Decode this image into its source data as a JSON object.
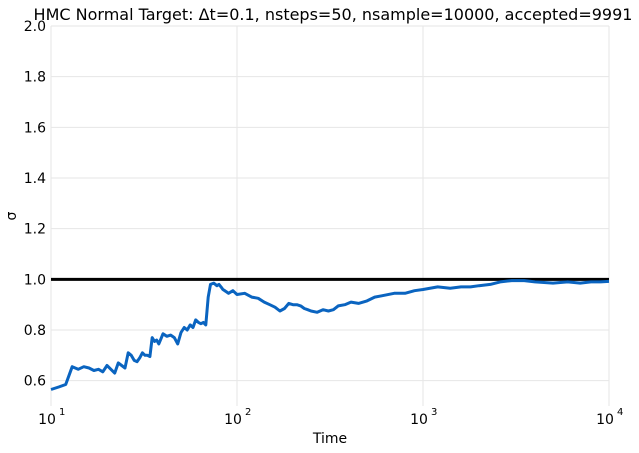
{
  "chart_data": {
    "type": "line",
    "title": "HMC Normal Target: Δt=0.1, nsteps=50, nsample=10000, accepted=9991",
    "xlabel": "Time",
    "ylabel": "σ",
    "xscale": "log",
    "xlim": [
      10,
      10000
    ],
    "ylim": [
      0.5,
      2.0
    ],
    "grid": true,
    "x_ticks": [
      {
        "base": "10",
        "exp": "1",
        "value": 10
      },
      {
        "base": "10",
        "exp": "2",
        "value": 100
      },
      {
        "base": "10",
        "exp": "3",
        "value": 1000
      },
      {
        "base": "10",
        "exp": "4",
        "value": 10000
      }
    ],
    "y_ticks": [
      "0.6",
      "0.8",
      "1.0",
      "1.2",
      "1.4",
      "1.6",
      "1.8",
      "2.0"
    ],
    "reference_line": {
      "y": 1.0,
      "color": "#000000"
    },
    "series": [
      {
        "color": "#0a64c0",
        "x": [
          10,
          11,
          12,
          13,
          14,
          15,
          16,
          17,
          18,
          19,
          20,
          21,
          22,
          23,
          24,
          25,
          26,
          27,
          28,
          29,
          30,
          31,
          32,
          33,
          34,
          35,
          36,
          37,
          38,
          39,
          40,
          42,
          44,
          46,
          48,
          50,
          52,
          54,
          56,
          58,
          60,
          62,
          64,
          66,
          68,
          70,
          72,
          75,
          78,
          80,
          82,
          84,
          86,
          88,
          90,
          95,
          100,
          110,
          120,
          130,
          140,
          150,
          160,
          170,
          180,
          190,
          200,
          210,
          220,
          230,
          240,
          250,
          270,
          290,
          310,
          330,
          350,
          380,
          410,
          450,
          500,
          550,
          600,
          700,
          800,
          900,
          1000,
          1200,
          1400,
          1600,
          1800,
          2000,
          2300,
          2600,
          3000,
          3500,
          4000,
          5000,
          6000,
          7000,
          8000,
          9000,
          10000
        ],
        "values": [
          0.565,
          0.575,
          0.585,
          0.655,
          0.645,
          0.655,
          0.65,
          0.64,
          0.645,
          0.635,
          0.66,
          0.645,
          0.63,
          0.67,
          0.66,
          0.65,
          0.71,
          0.7,
          0.68,
          0.675,
          0.69,
          0.71,
          0.7,
          0.7,
          0.695,
          0.77,
          0.755,
          0.76,
          0.745,
          0.765,
          0.785,
          0.775,
          0.78,
          0.77,
          0.745,
          0.79,
          0.81,
          0.8,
          0.82,
          0.81,
          0.84,
          0.83,
          0.825,
          0.83,
          0.82,
          0.93,
          0.98,
          0.985,
          0.975,
          0.98,
          0.97,
          0.96,
          0.955,
          0.95,
          0.945,
          0.955,
          0.94,
          0.945,
          0.93,
          0.925,
          0.91,
          0.9,
          0.89,
          0.875,
          0.885,
          0.905,
          0.9,
          0.9,
          0.895,
          0.885,
          0.88,
          0.875,
          0.87,
          0.88,
          0.875,
          0.88,
          0.895,
          0.9,
          0.91,
          0.905,
          0.915,
          0.93,
          0.935,
          0.945,
          0.945,
          0.955,
          0.96,
          0.97,
          0.965,
          0.97,
          0.97,
          0.975,
          0.98,
          0.99,
          0.995,
          0.995,
          0.99,
          0.985,
          0.99,
          0.985,
          0.99,
          0.99,
          0.992
        ]
      }
    ]
  }
}
